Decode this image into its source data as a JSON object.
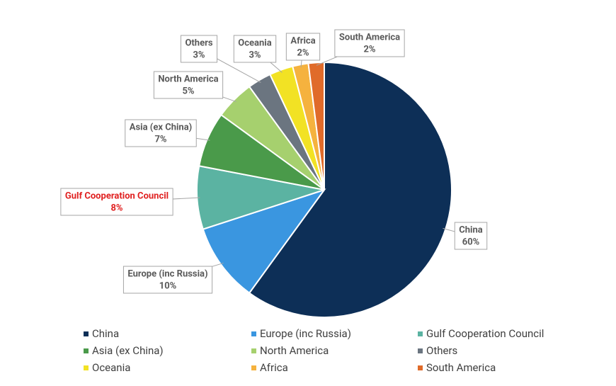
{
  "chart_data": {
    "type": "pie",
    "categories": [
      "China",
      "Europe (inc Russia)",
      "Gulf Cooperation Council",
      "Asia (ex China)",
      "North America",
      "Others",
      "Oceania",
      "Africa",
      "South America"
    ],
    "values": [
      60,
      10,
      8,
      7,
      5,
      3,
      3,
      2,
      2
    ],
    "value_labels": [
      "60%",
      "10%",
      "8%",
      "7%",
      "5%",
      "3%",
      "3%",
      "2%",
      "2%"
    ],
    "colors": [
      "#0d2f57",
      "#3a96e0",
      "#5bb3a2",
      "#4a9a4a",
      "#a6d06e",
      "#6b7580",
      "#f2e224",
      "#f5b23e",
      "#e06b2a"
    ],
    "label_colors": [
      "#595959",
      "#595959",
      "#e02020",
      "#595959",
      "#595959",
      "#595959",
      "#595959",
      "#595959",
      "#595959"
    ],
    "legend": "bottom"
  }
}
